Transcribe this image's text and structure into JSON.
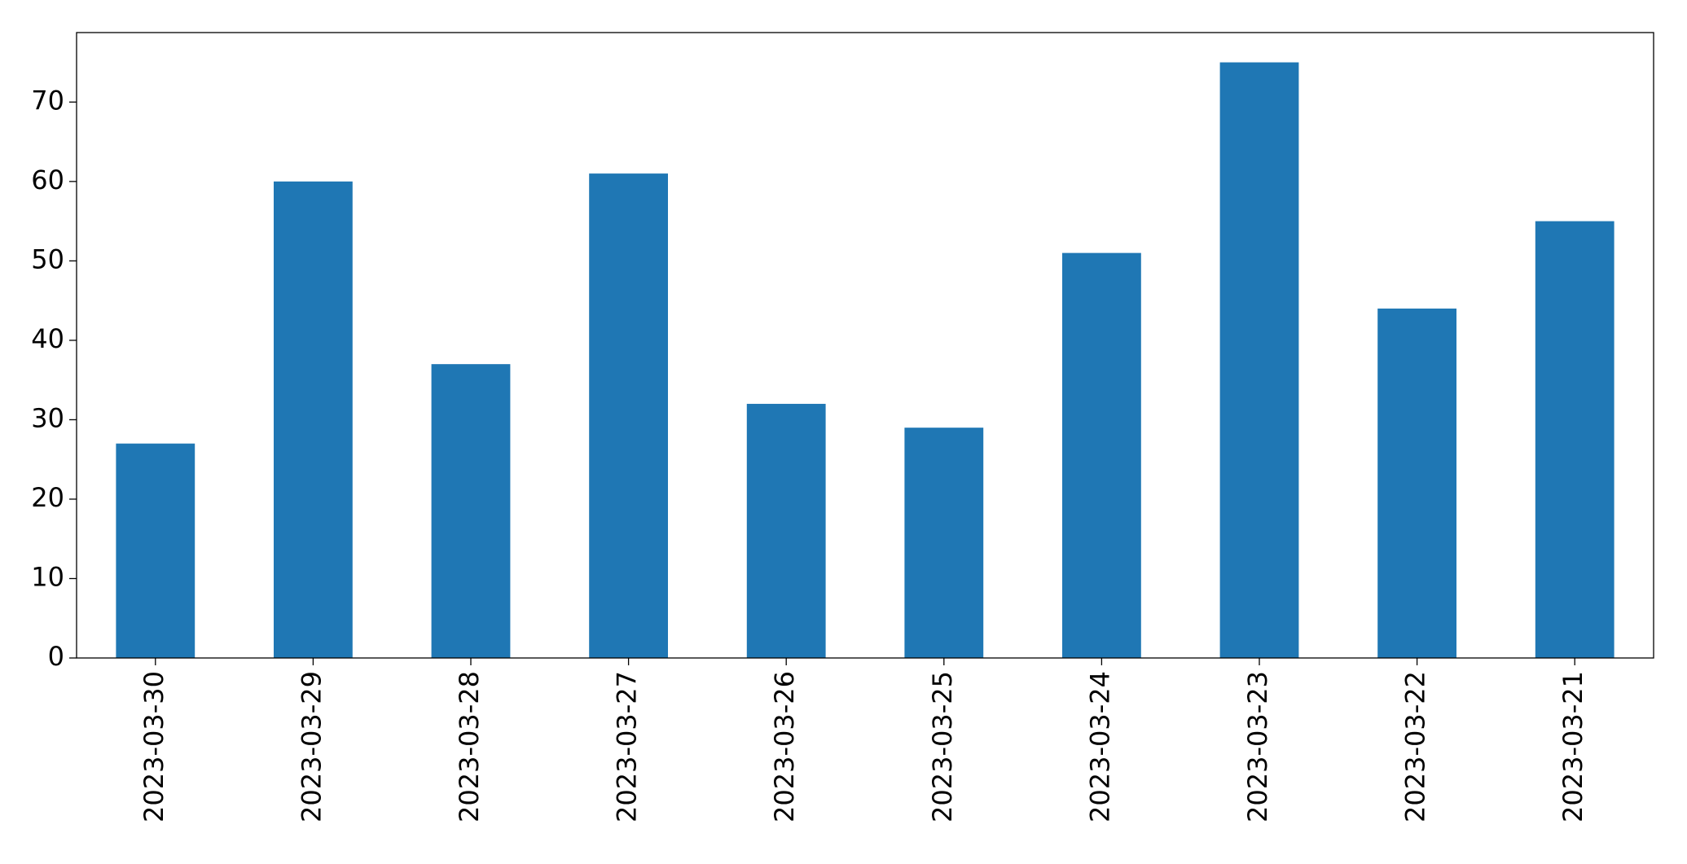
{
  "chart_data": {
    "type": "bar",
    "categories": [
      "2023-03-30",
      "2023-03-29",
      "2023-03-28",
      "2023-03-27",
      "2023-03-26",
      "2023-03-25",
      "2023-03-24",
      "2023-03-23",
      "2023-03-22",
      "2023-03-21"
    ],
    "values": [
      27,
      60,
      37,
      61,
      32,
      29,
      51,
      75,
      44,
      55
    ],
    "color": "#1f77b4",
    "ylim": [
      0,
      78.75
    ],
    "yticks": [
      0,
      10,
      20,
      30,
      40,
      50,
      60,
      70
    ],
    "grid": false
  }
}
